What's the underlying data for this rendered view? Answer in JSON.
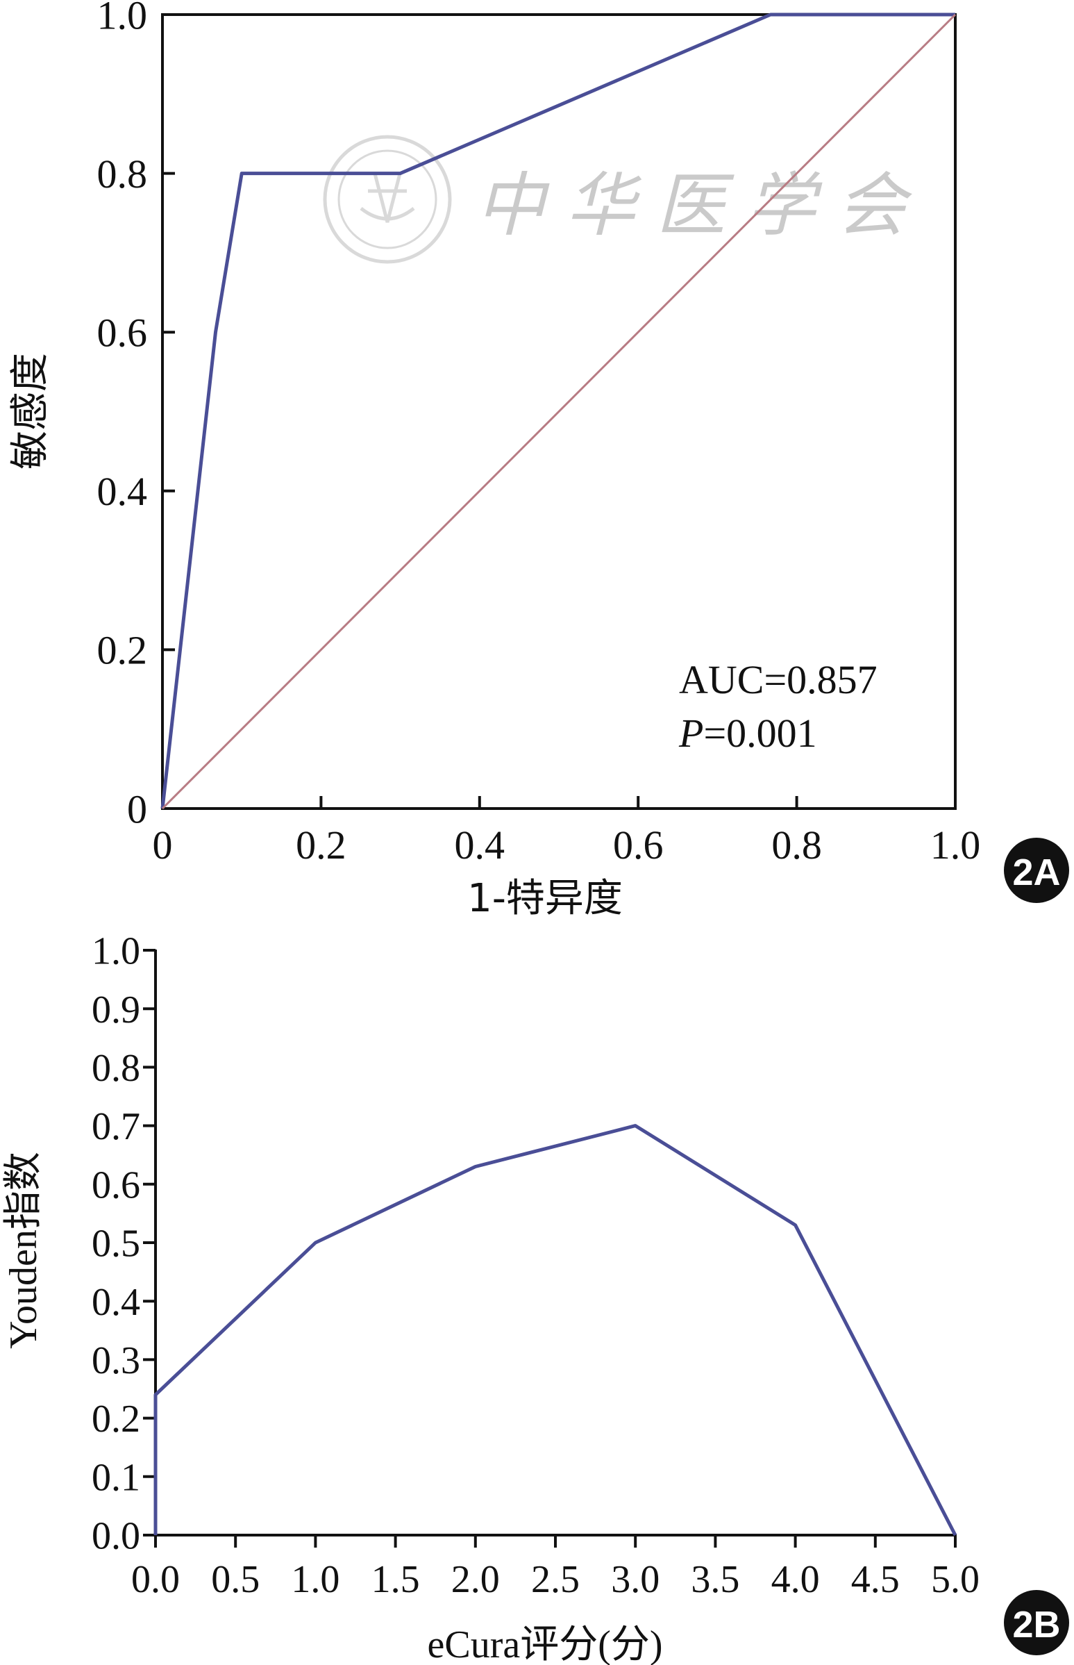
{
  "chart_data": [
    {
      "panel_label": "2A",
      "type": "line",
      "xlabel": "1-特异度",
      "ylabel": "敏感度",
      "xlim": [
        0,
        1
      ],
      "ylim": [
        0,
        1
      ],
      "x_ticks": [
        "0",
        "0.2",
        "0.4",
        "0.6",
        "0.8",
        "1.0"
      ],
      "y_ticks": [
        "0",
        "0.2",
        "0.4",
        "0.6",
        "0.8",
        "1.0"
      ],
      "annotation_auc": "AUC=0.857",
      "annotation_p_italic": "P",
      "annotation_p_value": "=0.001",
      "series": [
        {
          "color": "#4a4e96",
          "x": [
            0,
            0.067,
            0.1,
            0.3,
            0.767,
            1.0
          ],
          "y": [
            0,
            0.6,
            0.8,
            0.8,
            1.0,
            1.0
          ]
        },
        {
          "color": "#b87c84",
          "x": [
            0,
            1
          ],
          "y": [
            0,
            1
          ]
        }
      ],
      "grid": false,
      "watermark": "中华医学会"
    },
    {
      "panel_label": "2B",
      "type": "line",
      "xlabel": "eCura评分(分)",
      "ylabel": "Youden指数",
      "xlim": [
        0,
        5
      ],
      "ylim": [
        0,
        1
      ],
      "x_ticks": [
        "0.0",
        "0.5",
        "1.0",
        "1.5",
        "2.0",
        "2.5",
        "3.0",
        "3.5",
        "4.0",
        "4.5",
        "5.0"
      ],
      "y_ticks": [
        "0.0",
        "0.1",
        "0.2",
        "0.3",
        "0.4",
        "0.5",
        "0.6",
        "0.7",
        "0.8",
        "0.9",
        "1.0"
      ],
      "series": [
        {
          "color": "#4a4e96",
          "x": [
            0,
            0,
            1,
            2,
            3,
            4,
            5
          ],
          "y": [
            0,
            0.24,
            0.5,
            0.63,
            0.7,
            0.53,
            0
          ]
        }
      ],
      "grid": false
    }
  ]
}
